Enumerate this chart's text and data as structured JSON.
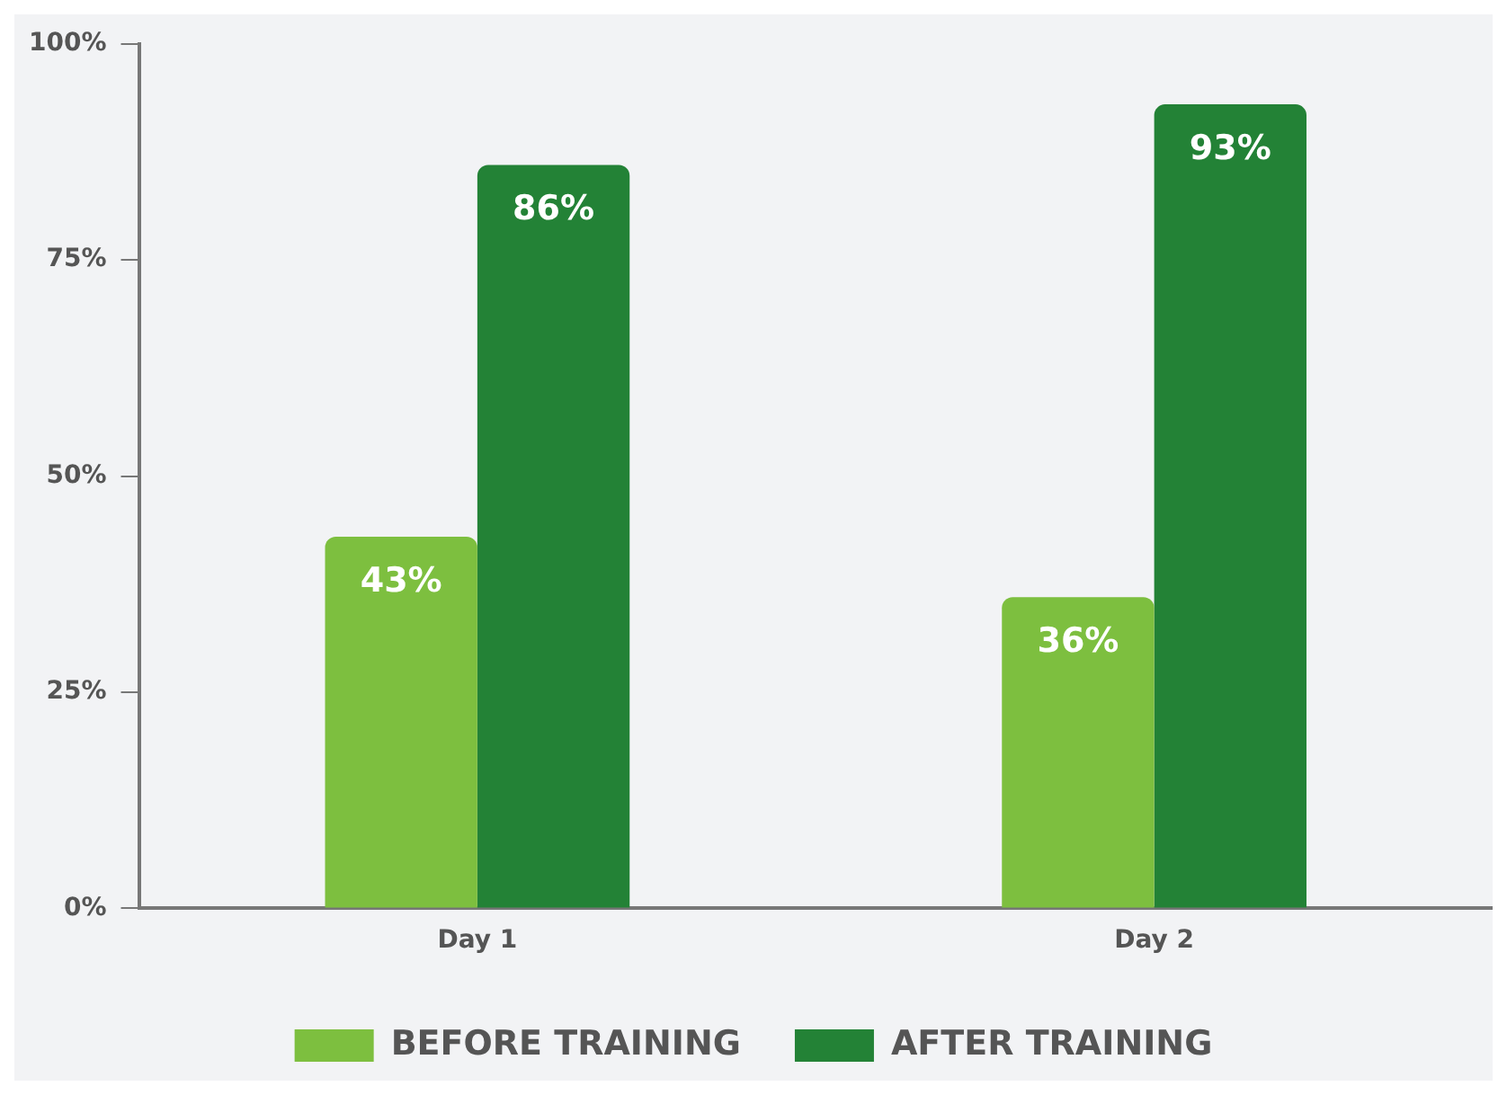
{
  "chart_data": {
    "type": "bar",
    "categories": [
      "Day 1",
      "Day 2"
    ],
    "series": [
      {
        "name": "BEFORE TRAINING",
        "color": "#7dbf3f",
        "values": [
          43,
          36
        ]
      },
      {
        "name": "AFTER TRAINING",
        "color": "#238236",
        "values": [
          86,
          93
        ]
      }
    ],
    "ylim": [
      0,
      100
    ],
    "yticks": [
      {
        "value": 0,
        "label": "0%"
      },
      {
        "value": 25,
        "label": "25%"
      },
      {
        "value": 50,
        "label": "50%"
      },
      {
        "value": 75,
        "label": "75%"
      },
      {
        "value": 100,
        "label": "100%"
      }
    ],
    "value_labels": [
      [
        "43%",
        "36%"
      ],
      [
        "86%",
        "93%"
      ]
    ],
    "grid": false,
    "legend": "bottom"
  }
}
